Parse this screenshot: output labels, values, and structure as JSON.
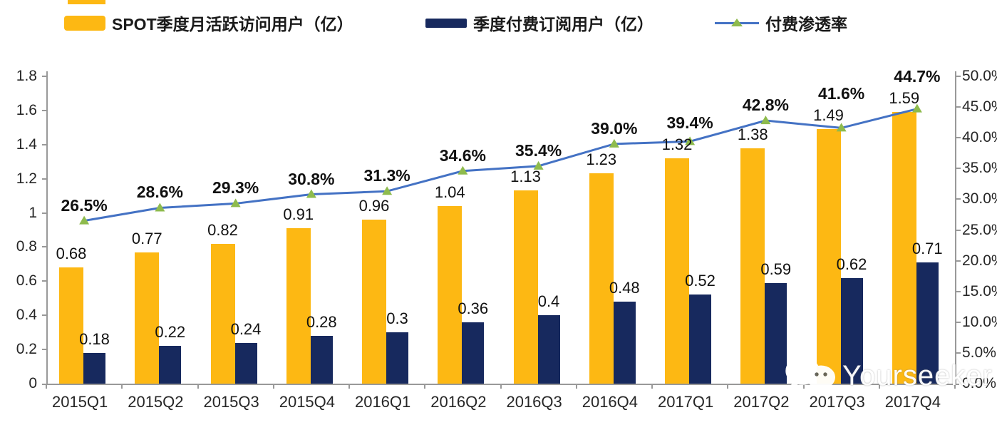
{
  "legend": [
    {
      "label": "SPOT季度月活跃访问用户（亿）"
    },
    {
      "label": "季度付费订阅用户（亿）"
    },
    {
      "label": "付费渗透率"
    }
  ],
  "chart_data": {
    "type": "bar",
    "subtype": "grouped-bar-with-line-combo",
    "categories": [
      "2015Q1",
      "2015Q2",
      "2015Q3",
      "2015Q4",
      "2016Q1",
      "2016Q2",
      "2016Q3",
      "2016Q4",
      "2017Q1",
      "2017Q2",
      "2017Q3",
      "2017Q4"
    ],
    "series": [
      {
        "name": "SPOT季度月活跃访问用户（亿）",
        "type": "bar",
        "axis": "left",
        "color": "#FDB813",
        "values": [
          0.68,
          0.77,
          0.82,
          0.91,
          0.96,
          1.04,
          1.13,
          1.23,
          1.32,
          1.38,
          1.49,
          1.59
        ],
        "value_labels": [
          "0.68",
          "0.77",
          "0.82",
          "0.91",
          "0.96",
          "1.04",
          "1.13",
          "1.23",
          "1.32",
          "1.38",
          "1.49",
          "1.59"
        ]
      },
      {
        "name": "季度付费订阅用户（亿）",
        "type": "bar",
        "axis": "left",
        "color": "#17295E",
        "values": [
          0.18,
          0.22,
          0.24,
          0.28,
          0.3,
          0.36,
          0.4,
          0.48,
          0.52,
          0.59,
          0.62,
          0.71
        ],
        "value_labels": [
          "0.18",
          "0.22",
          "0.24",
          "0.28",
          "0.3",
          "0.36",
          "0.4",
          "0.48",
          "0.52",
          "0.59",
          "0.62",
          "0.71"
        ]
      },
      {
        "name": "付费渗透率",
        "type": "line",
        "axis": "right",
        "color": "#4472C4",
        "marker": "triangle",
        "marker_color": "#8EBB4D",
        "values": [
          26.5,
          28.6,
          29.3,
          30.8,
          31.3,
          34.6,
          35.4,
          39.0,
          39.4,
          42.8,
          41.6,
          44.7
        ],
        "value_labels": [
          "26.5%",
          "28.6%",
          "29.3%",
          "30.8%",
          "31.3%",
          "34.6%",
          "35.4%",
          "39.0%",
          "39.4%",
          "42.8%",
          "41.6%",
          "44.7%"
        ]
      }
    ],
    "left_axis": {
      "min": 0,
      "max": 1.8,
      "tick_step": 0.2,
      "tick_labels": [
        "0",
        "0.2",
        "0.4",
        "0.6",
        "0.8",
        "1",
        "1.2",
        "1.4",
        "1.6",
        "1.8"
      ]
    },
    "right_axis": {
      "min": 0,
      "max": 50,
      "tick_step": 5,
      "tick_labels": [
        "0.0%",
        "5.0%",
        "10.0%",
        "15.0%",
        "20.0%",
        "25.0%",
        "30.0%",
        "35.0%",
        "40.0%",
        "45.0%",
        "50.0%"
      ]
    },
    "grid": false,
    "legend_position": "top"
  },
  "colors": {
    "bar_mau": "#FDB813",
    "bar_subs": "#17295E",
    "line": "#4472C4",
    "marker": "#8EBB4D",
    "axis": "#999999"
  },
  "watermark": {
    "text": "Yourseeker",
    "icon": "wechat-icon"
  }
}
